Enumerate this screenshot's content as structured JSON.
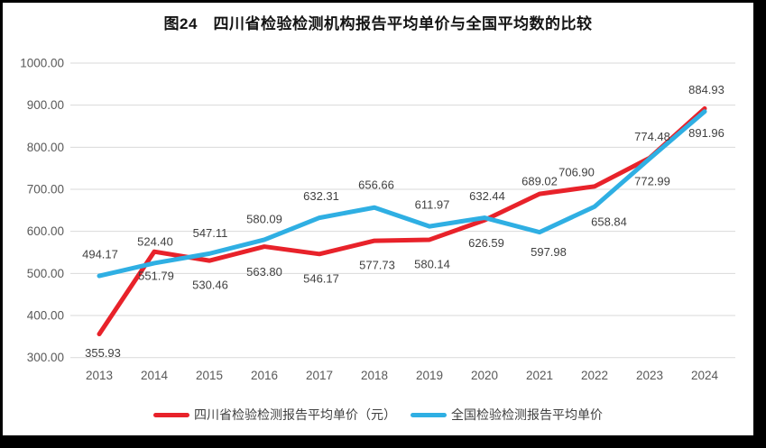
{
  "title": "图24　四川省检验检测机构报告平均单价与全国平均数的比较",
  "chart_data": {
    "type": "line",
    "title": "图24　四川省检验检测机构报告平均单价与全国平均数的比较",
    "categories": [
      "2013",
      "2014",
      "2015",
      "2016",
      "2017",
      "2018",
      "2019",
      "2020",
      "2021",
      "2022",
      "2023",
      "2024"
    ],
    "series": [
      {
        "name": "四川省检验检测报告平均单价（元）",
        "color": "#e8222a",
        "values": [
          355.93,
          551.79,
          530.46,
          563.8,
          546.17,
          577.73,
          580.14,
          626.59,
          689.02,
          706.9,
          774.48,
          891.96
        ],
        "label_offsets": [
          [
            4,
            21
          ],
          [
            2,
            27
          ],
          [
            1,
            27
          ],
          [
            0,
            28
          ],
          [
            2,
            27
          ],
          [
            3,
            27
          ],
          [
            3,
            27
          ],
          [
            2,
            25
          ],
          [
            0,
            -14
          ],
          [
            -20,
            -16
          ],
          [
            3,
            -24
          ],
          [
            2,
            27
          ]
        ]
      },
      {
        "name": "全国检验检测报告平均单价",
        "color": "#2fafe3",
        "values": [
          494.17,
          524.4,
          547.11,
          580.09,
          632.31,
          656.66,
          611.97,
          632.44,
          597.98,
          658.84,
          772.99,
          884.93
        ],
        "label_offsets": [
          [
            1,
            -24
          ],
          [
            1,
            -24
          ],
          [
            1,
            -23
          ],
          [
            0,
            -23
          ],
          [
            2,
            -24
          ],
          [
            2,
            -25
          ],
          [
            3,
            -24
          ],
          [
            3,
            -24
          ],
          [
            10,
            22
          ],
          [
            16,
            17
          ],
          [
            3,
            25
          ],
          [
            2,
            -24
          ]
        ]
      }
    ],
    "ylim": [
      300,
      1000
    ],
    "y_tick_labels": [
      "300.00",
      "400.00",
      "500.00",
      "600.00",
      "700.00",
      "800.00",
      "900.00",
      "1000.00"
    ],
    "grid": true,
    "legend_position": "bottom",
    "colors": {
      "gridline": "#d9d9d9",
      "axis_label": "#595959",
      "data_label": "#3f3f3f",
      "background": "#ffffff",
      "border": "#000000"
    }
  }
}
